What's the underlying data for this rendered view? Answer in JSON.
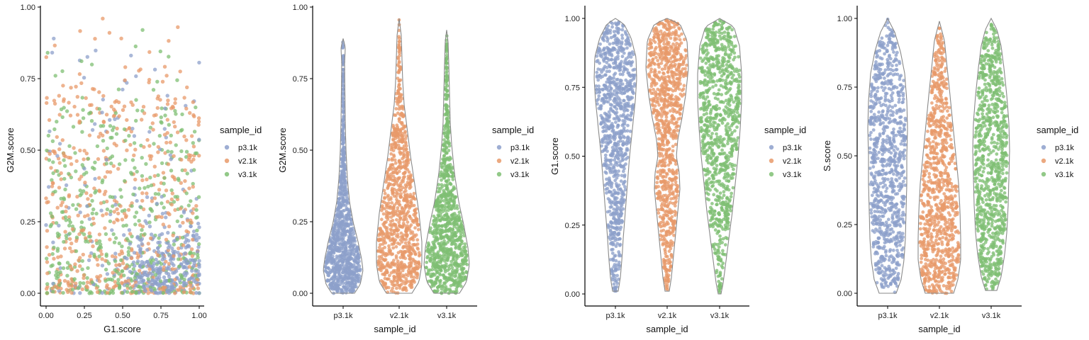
{
  "colors": {
    "p3.1k": "#8DA0CB",
    "v2.1k": "#E89A6A",
    "v3.1k": "#7FBF73"
  },
  "chart_data": [
    {
      "type": "scatter",
      "xlabel": "G1.score",
      "ylabel": "G2M.score",
      "xlim": [
        0,
        1
      ],
      "ylim": [
        0,
        1
      ],
      "xticks": [
        "0.00",
        "0.25",
        "0.50",
        "0.75",
        "1.00"
      ],
      "yticks": [
        "0.00",
        "0.25",
        "0.50",
        "0.75",
        "1.00"
      ],
      "legend_title": "sample_id",
      "legend_entries": [
        "p3.1k",
        "v2.1k",
        "v3.1k"
      ],
      "legend_position": "right",
      "series": [
        {
          "name": "p3.1k",
          "description_density": "concentrated at low G2M (0-0.25) and high G1 (0.6-1.0), sparse elsewhere"
        },
        {
          "name": "v2.1k",
          "description_density": "spread across G1 0-1, G2M mostly 0-0.6, a few up to 0.96"
        },
        {
          "name": "v3.1k",
          "description_density": "spread across G1 0-1, G2M mostly 0-0.5, a few up to 0.9"
        }
      ],
      "max_points": {
        "p3.1k": 0.89,
        "v2.1k": 0.96,
        "v3.1k": 0.92
      }
    },
    {
      "type": "violin",
      "xlabel": "sample_id",
      "ylabel": "G2M.score",
      "ylim": [
        0,
        1
      ],
      "yticks": [
        "0.00",
        "0.25",
        "0.50",
        "0.75",
        "1.00"
      ],
      "categories": [
        "p3.1k",
        "v2.1k",
        "v3.1k"
      ],
      "legend_title": "sample_id",
      "legend_entries": [
        "p3.1k",
        "v2.1k",
        "v3.1k"
      ],
      "legend_position": "right",
      "series": [
        {
          "name": "p3.1k",
          "range": [
            0.0,
            0.89
          ],
          "median": 0.12
        },
        {
          "name": "v2.1k",
          "range": [
            0.0,
            0.96
          ],
          "median": 0.22
        },
        {
          "name": "v3.1k",
          "range": [
            0.0,
            0.92
          ],
          "median": 0.13
        }
      ]
    },
    {
      "type": "violin",
      "xlabel": "sample_id",
      "ylabel": "G1.score",
      "ylim": [
        0,
        1
      ],
      "yticks": [
        "0.00",
        "0.25",
        "0.50",
        "0.75",
        "1.00"
      ],
      "categories": [
        "p3.1k",
        "v2.1k",
        "v3.1k"
      ],
      "legend_title": "sample_id",
      "legend_entries": [
        "p3.1k",
        "v2.1k",
        "v3.1k"
      ],
      "legend_position": "right",
      "series": [
        {
          "name": "p3.1k",
          "range": [
            0.01,
            1.0
          ],
          "median": 0.6
        },
        {
          "name": "v2.1k",
          "range": [
            0.01,
            1.0
          ],
          "median": 0.72
        },
        {
          "name": "v3.1k",
          "range": [
            0.0,
            1.0
          ],
          "median": 0.7
        }
      ]
    },
    {
      "type": "violin",
      "xlabel": "sample_id",
      "ylabel": "S.score",
      "ylim": [
        0,
        1
      ],
      "yticks": [
        "0.00",
        "0.25",
        "0.50",
        "0.75",
        "1.00"
      ],
      "categories": [
        "p3.1k",
        "v2.1k",
        "v3.1k"
      ],
      "legend_title": "sample_id",
      "legend_entries": [
        "p3.1k",
        "v2.1k",
        "v3.1k"
      ],
      "legend_position": "right",
      "series": [
        {
          "name": "p3.1k",
          "range": [
            0.0,
            1.0
          ],
          "median": 0.55
        },
        {
          "name": "v2.1k",
          "range": [
            0.0,
            0.99
          ],
          "median": 0.32
        },
        {
          "name": "v3.1k",
          "range": [
            0.01,
            1.0
          ],
          "median": 0.45
        }
      ]
    }
  ]
}
